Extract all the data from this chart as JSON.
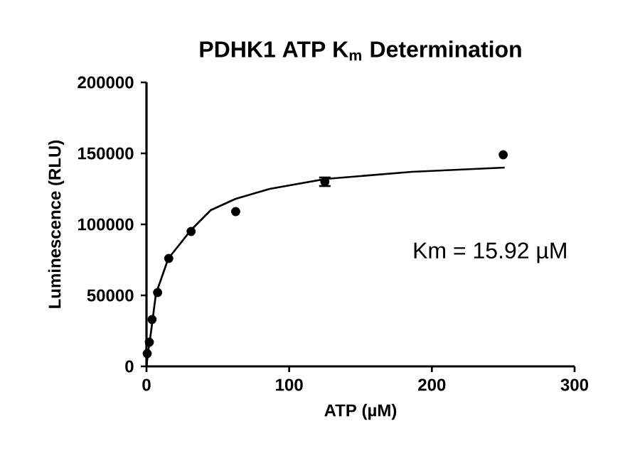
{
  "chart_data": {
    "type": "scatter",
    "title": "PDHK1 ATP K$_{m}$ Determination",
    "xlabel": "ATP (µM)",
    "ylabel": "Luminescence (RLU)",
    "xlim": [
      0,
      300
    ],
    "xticks": [
      0,
      100,
      200,
      300
    ],
    "ylim": [
      0,
      200000
    ],
    "yticks": [
      0,
      50000,
      100000,
      150000,
      200000
    ],
    "marker": "circle",
    "annotations": [
      "Km = 15.92 µM"
    ],
    "series": [
      {
        "color": "#000000",
        "x": [
          0.5,
          2,
          3.9,
          7.8,
          15.6,
          31.25,
          62.5,
          125,
          250
        ],
        "values": [
          9000,
          17000,
          33000,
          52000,
          76000,
          95000,
          109000,
          130000,
          149000
        ],
        "errors": [
          null,
          null,
          null,
          null,
          null,
          null,
          null,
          3000,
          null
        ]
      },
      {
        "type": "line",
        "marker": "none",
        "color": "#000000",
        "x": [
          0,
          1,
          3,
          6.6,
          15.3,
          31.2,
          45,
          62.5,
          86.4,
          125.6,
          186,
          251
        ],
        "values": [
          0,
          9000,
          23000,
          51000,
          76000,
          96000,
          110000,
          118000,
          125000,
          132000,
          137000,
          140000
        ]
      }
    ]
  }
}
